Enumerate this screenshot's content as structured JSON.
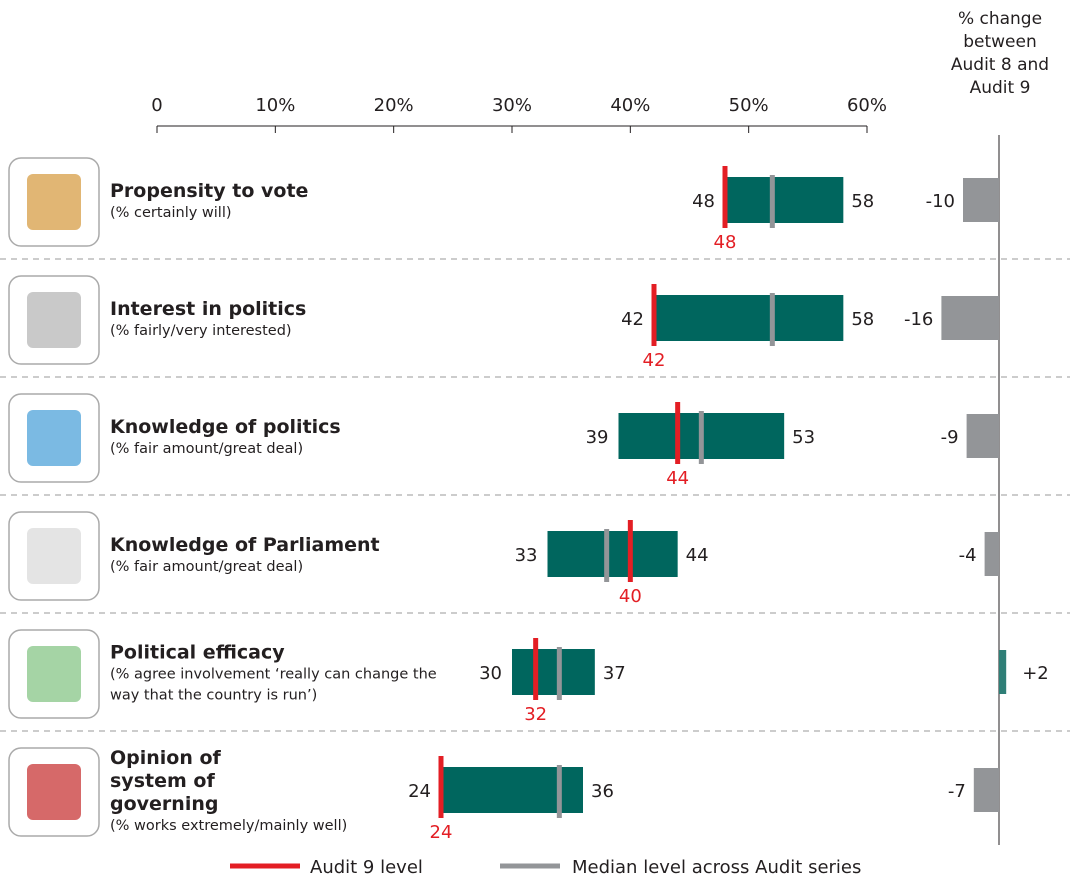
{
  "chart_data": {
    "type": "range",
    "categories": [
      "Propensity to vote",
      "Interest in politics",
      "Knowledge of politics",
      "Knowledge of Parliament",
      "Political efficacy",
      "Opinion of system of governing"
    ],
    "subtitles": [
      "(% certainly will)",
      "(% fairly/very interested)",
      "(% fair amount/great deal)",
      "(% fair amount/great deal)",
      "(% agree involvement ‘really can change the way that the country is run’)",
      "(% works extremely/mainly well)"
    ],
    "xlim": [
      0,
      60
    ],
    "xticks": [
      0,
      {
        "value": 10,
        "label": "10%"
      },
      {
        "value": 20,
        "label": "20%"
      },
      {
        "value": 30,
        "label": "30%"
      },
      {
        "value": 40,
        "label": "40%"
      },
      {
        "value": 50,
        "label": "50%"
      },
      {
        "value": 60,
        "label": "60%"
      }
    ],
    "range": {
      "color": "#00665e",
      "low": [
        48,
        42,
        39,
        33,
        30,
        24
      ],
      "high": [
        58,
        58,
        53,
        44,
        37,
        36
      ]
    },
    "series": [
      {
        "name": "Audit 9 level",
        "color": "#e31e24",
        "values": [
          48,
          42,
          44,
          40,
          32,
          24
        ]
      },
      {
        "name": "Median level across Audit series",
        "color": "#939598",
        "values": [
          52,
          52,
          46,
          38,
          34,
          34
        ]
      }
    ],
    "change": {
      "title": "% change between Audit 8 and Audit 9",
      "xlim": [
        -20,
        5
      ],
      "values": [
        -10,
        -16,
        -9,
        -4,
        2,
        -7
      ],
      "value_labels": [
        "-10",
        "-16",
        "-9",
        "-4",
        "+2",
        "-7"
      ],
      "negative_color": "#939598",
      "positive_color": "#2f7f77"
    }
  }
}
